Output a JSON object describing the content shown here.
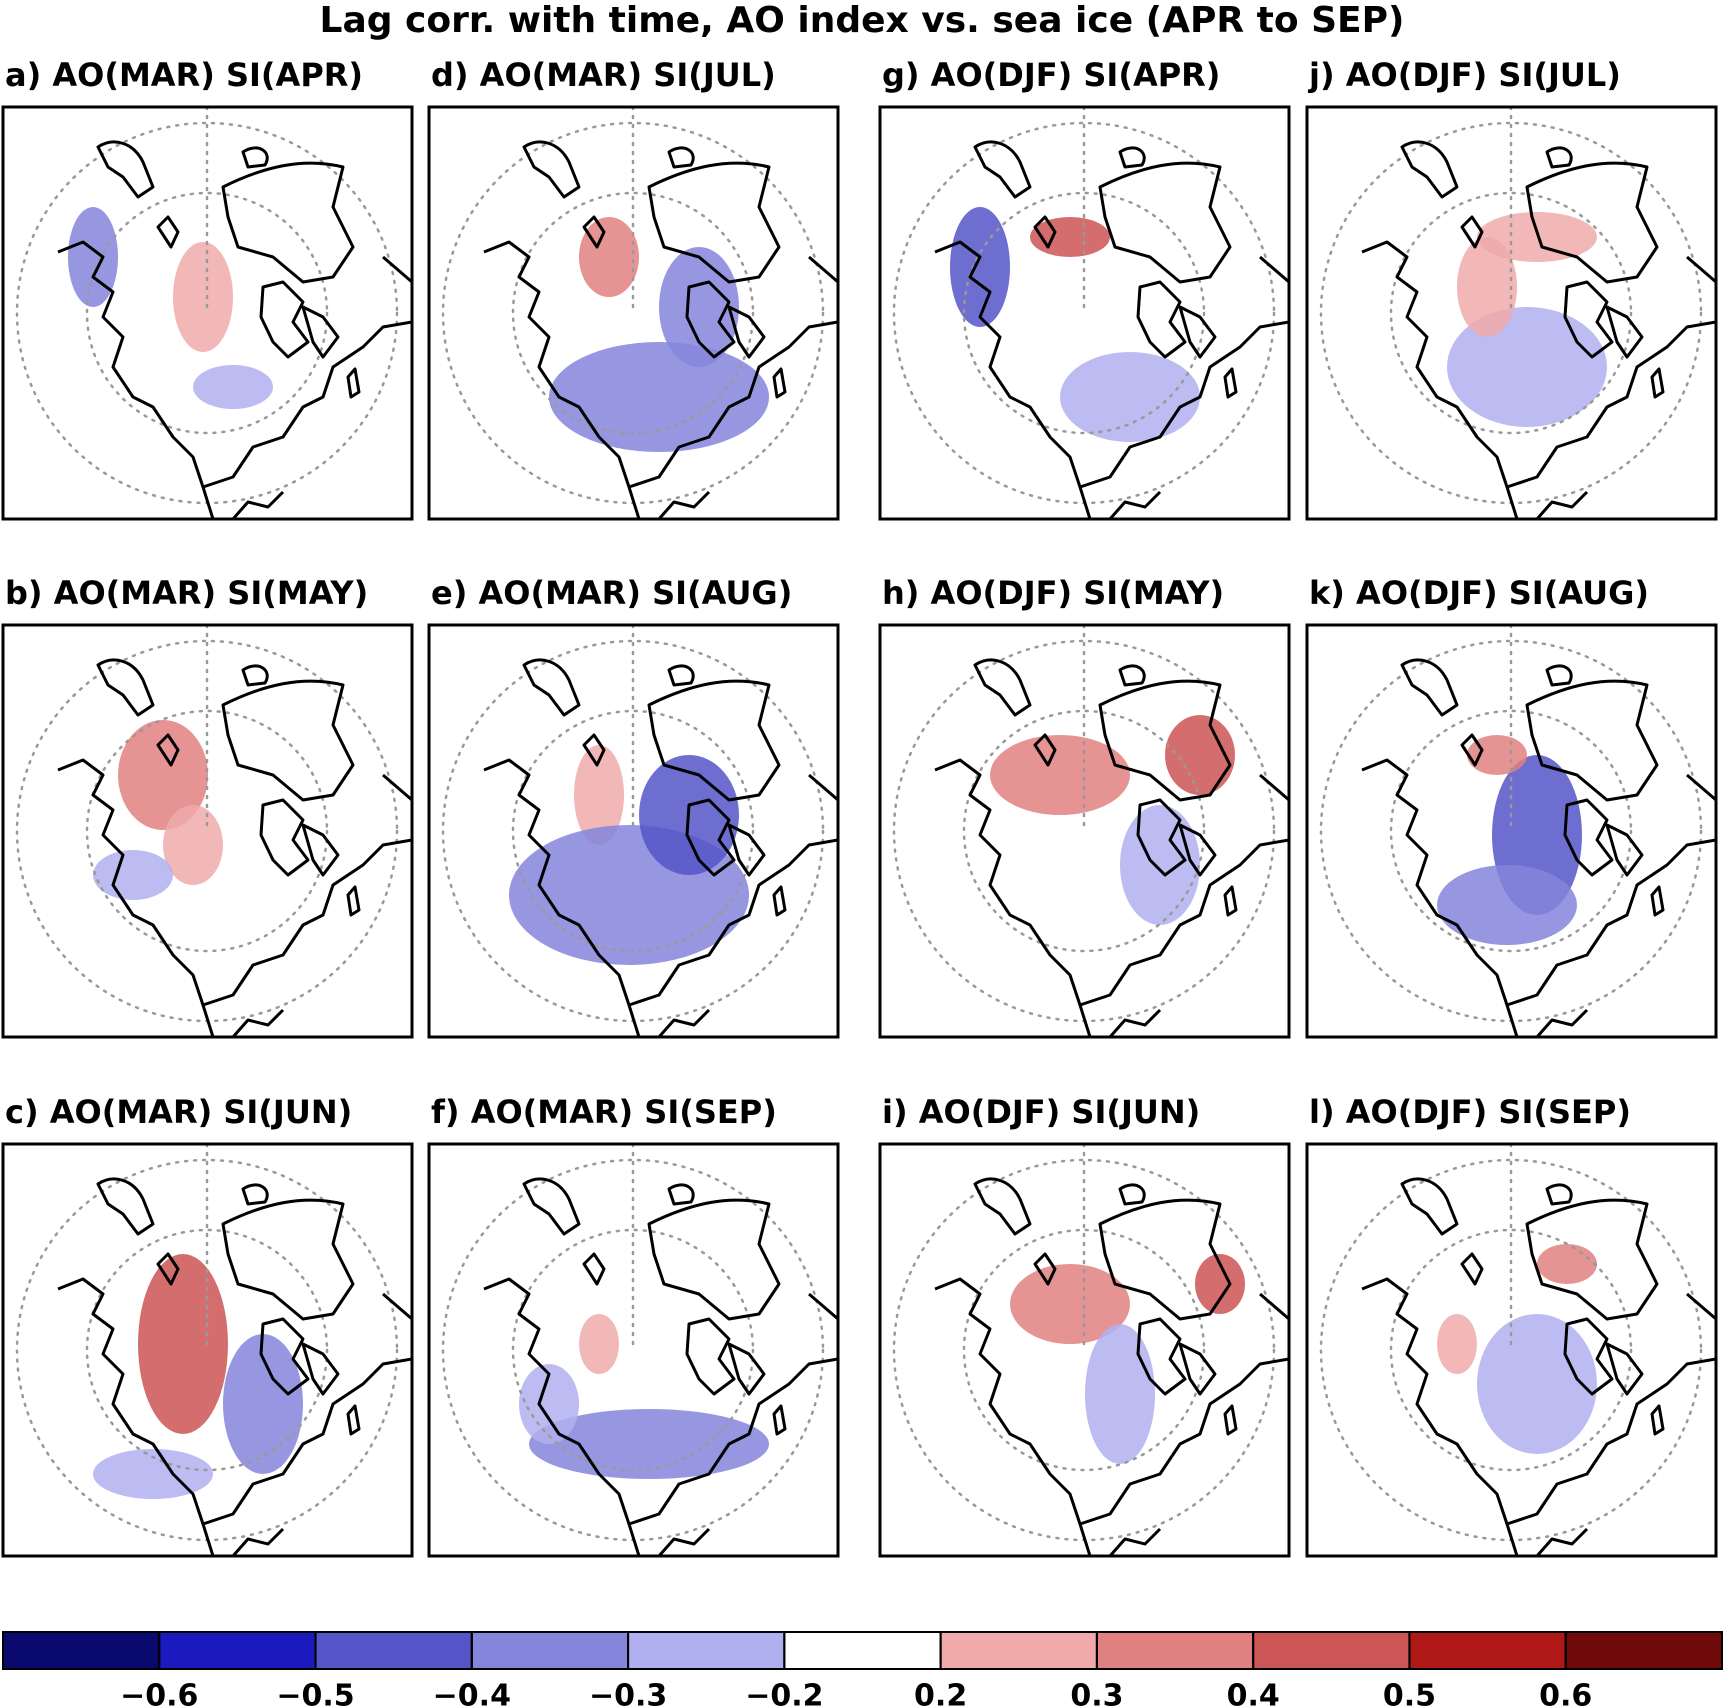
{
  "header": {
    "title": "Lag corr. with time, AO index vs. sea ice (APR to SEP)"
  },
  "panels": [
    {
      "label": "a)  AO(MAR)  SI(APR)"
    },
    {
      "label": "b)  AO(MAR)  SI(MAY)"
    },
    {
      "label": "c)  AO(MAR)  SI(JUN)"
    },
    {
      "label": "d)  AO(MAR)  SI(JUL)"
    },
    {
      "label": "e)  AO(MAR)  SI(AUG)"
    },
    {
      "label": "f)  AO(MAR)  SI(SEP)"
    },
    {
      "label": "g)  AO(DJF)  SI(APR)"
    },
    {
      "label": "h)  AO(DJF)  SI(MAY)"
    },
    {
      "label": "i)  AO(DJF)  SI(JUN)"
    },
    {
      "label": "j)  AO(DJF)  SI(JUL)"
    },
    {
      "label": "k)  AO(DJF)  SI(AUG)"
    },
    {
      "label": "l)  AO(DJF)  SI(SEP)"
    }
  ],
  "colorbar": {
    "colors": [
      "#0a0a6e",
      "#1a1abf",
      "#5555c8",
      "#8585dc",
      "#b0b0f0",
      "#ffffff",
      "#f0aaaa",
      "#e08080",
      "#cc5555",
      "#b01818",
      "#6e0a0a"
    ],
    "ticks": [
      {
        "value": -0.6,
        "label": "−0.6"
      },
      {
        "value": -0.5,
        "label": "−0.5"
      },
      {
        "value": -0.4,
        "label": "−0.4"
      },
      {
        "value": -0.3,
        "label": "−0.3"
      },
      {
        "value": -0.2,
        "label": "−0.2"
      },
      {
        "value": 0.2,
        "label": "0.2"
      },
      {
        "value": 0.3,
        "label": "0.3"
      },
      {
        "value": 0.4,
        "label": "0.4"
      },
      {
        "value": 0.5,
        "label": "0.5"
      },
      {
        "value": 0.6,
        "label": "0.6"
      }
    ]
  }
}
